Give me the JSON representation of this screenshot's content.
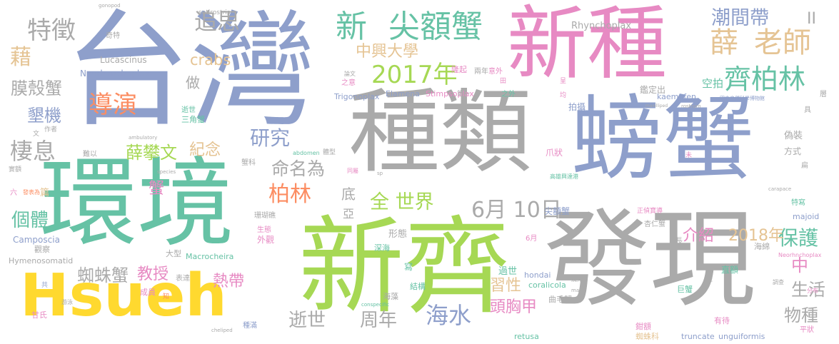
{
  "palette": {
    "gray": "#aaaaaa",
    "blue": "#8e9fcb",
    "teal": "#66c2a5",
    "green": "#a6d854",
    "pink": "#e78ac3",
    "orange": "#fc8d62",
    "yellow": "#ffd92f",
    "tan": "#e5c494"
  },
  "words": [
    {
      "text": "台灣",
      "color": "blue"
    },
    {
      "text": "種類",
      "color": "gray"
    },
    {
      "text": "螃蟹",
      "color": "blue"
    },
    {
      "text": "新種",
      "color": "pink"
    },
    {
      "text": "環境",
      "color": "teal"
    },
    {
      "text": "新齊",
      "color": "green"
    },
    {
      "text": "發現",
      "color": "gray"
    },
    {
      "text": "Hsueh",
      "color": "yellow"
    },
    {
      "text": "新",
      "color": "teal"
    },
    {
      "text": "尖額蟹",
      "color": "teal"
    },
    {
      "text": "2017年",
      "color": "green"
    },
    {
      "text": "薛",
      "color": "tan"
    },
    {
      "text": "老師",
      "color": "tan"
    },
    {
      "text": "齊柏林",
      "color": "teal"
    },
    {
      "text": "潮間帶",
      "color": "blue"
    },
    {
      "text": "特徵",
      "color": "gray"
    },
    {
      "text": "追思",
      "color": "gray"
    },
    {
      "text": "導演",
      "color": "orange"
    },
    {
      "text": "中興大學",
      "color": "tan"
    },
    {
      "text": "crabs",
      "color": "tan"
    },
    {
      "text": "膜殼蟹",
      "color": "gray"
    },
    {
      "text": "墾機",
      "color": "blue"
    },
    {
      "text": "棲息",
      "color": "gray"
    },
    {
      "text": "研究",
      "color": "blue"
    },
    {
      "text": "薛攀文",
      "color": "green"
    },
    {
      "text": "紀念",
      "color": "tan"
    },
    {
      "text": "命名為",
      "color": "gray"
    },
    {
      "text": "柏林",
      "color": "orange"
    },
    {
      "text": "全 世界",
      "color": "green"
    },
    {
      "text": "6月 10日",
      "color": "gray"
    },
    {
      "text": "個體",
      "color": "teal"
    },
    {
      "text": "保護",
      "color": "teal"
    },
    {
      "text": "中",
      "color": "pink"
    },
    {
      "text": "介紹",
      "color": "pink"
    },
    {
      "text": "2018年",
      "color": "tan"
    },
    {
      "text": "生活",
      "color": "gray"
    },
    {
      "text": "物種",
      "color": "gray"
    },
    {
      "text": "蜘蛛蟹",
      "color": "gray"
    },
    {
      "text": "教授",
      "color": "pink"
    },
    {
      "text": "逝世",
      "color": "gray"
    },
    {
      "text": "周年",
      "color": "gray"
    },
    {
      "text": "海水",
      "color": "blue"
    },
    {
      "text": "頭胸甲",
      "color": "pink"
    },
    {
      "text": "習性",
      "color": "tan"
    },
    {
      "text": "熱帶",
      "color": "pink"
    },
    {
      "text": "Neorhynchoplax",
      "color": "blue"
    },
    {
      "text": "Lucascinus",
      "color": "gray"
    },
    {
      "text": "Rhynchoplax",
      "color": "gray"
    },
    {
      "text": "Trigonoplax",
      "color": "blue"
    },
    {
      "text": "Elamena",
      "color": "blue"
    },
    {
      "text": "Stimpsoplax",
      "color": "pink"
    },
    {
      "text": "kaempfen",
      "color": "blue"
    },
    {
      "text": "Camposcia",
      "color": "blue"
    },
    {
      "text": "Hymenosomatid",
      "color": "gray"
    },
    {
      "text": "Macrocheira",
      "color": "teal"
    },
    {
      "text": "coralicola",
      "color": "teal"
    },
    {
      "text": "hondai",
      "color": "blue"
    },
    {
      "text": "majoid",
      "color": "blue"
    },
    {
      "text": "retusa",
      "color": "teal"
    },
    {
      "text": "truncate",
      "color": "blue"
    },
    {
      "text": "unguiformis",
      "color": "blue"
    },
    {
      "text": "setirostris",
      "color": "gray"
    },
    {
      "text": "gonopod",
      "color": "gray"
    },
    {
      "text": "ambulatory",
      "color": "gray"
    },
    {
      "text": "abdomen",
      "color": "teal"
    },
    {
      "text": "species",
      "color": "gray"
    },
    {
      "text": "carapace",
      "color": "gray"
    },
    {
      "text": "cheliped",
      "color": "gray"
    },
    {
      "text": "conspecific",
      "color": "teal"
    },
    {
      "text": "rostrum",
      "color": "gray"
    },
    {
      "text": "male",
      "color": "gray"
    },
    {
      "text": "Neorhnchoplax",
      "color": "pink"
    },
    {
      "text": "maxilliped",
      "color": "gray"
    },
    {
      "text": "sp",
      "color": "gray"
    },
    {
      "text": "II",
      "color": "gray"
    },
    {
      "text": "做",
      "color": "gray"
    },
    {
      "text": "藉",
      "color": "tan"
    },
    {
      "text": "底",
      "color": "gray"
    },
    {
      "text": "蟹",
      "color": "pink"
    },
    {
      "text": "亞",
      "color": "gray"
    },
    {
      "text": "篇",
      "color": "tan"
    },
    {
      "text": "空拍",
      "color": "teal"
    },
    {
      "text": "拍攝",
      "color": "blue"
    },
    {
      "text": "鑑定出",
      "color": "gray"
    },
    {
      "text": "爪狀",
      "color": "pink"
    },
    {
      "text": "尖額蟹",
      "color": "blue"
    },
    {
      "text": "正偵寶導",
      "color": "pink"
    },
    {
      "text": "杏仁蟹",
      "color": "gray"
    },
    {
      "text": "海綿",
      "color": "gray"
    },
    {
      "text": "偽裝",
      "color": "gray"
    },
    {
      "text": "方式",
      "color": "gray"
    },
    {
      "text": "特寫",
      "color": "teal"
    },
    {
      "text": "直額",
      "color": "teal"
    },
    {
      "text": "過世",
      "color": "teal"
    },
    {
      "text": "形態",
      "color": "gray"
    },
    {
      "text": "深海",
      "color": "teal"
    },
    {
      "text": "外觀",
      "color": "pink"
    },
    {
      "text": "生態",
      "color": "pink"
    },
    {
      "text": "珊瑚礁",
      "color": "gray"
    },
    {
      "text": "大型",
      "color": "gray"
    },
    {
      "text": "觀察",
      "color": "gray"
    },
    {
      "text": "結構",
      "color": "teal"
    },
    {
      "text": "寫",
      "color": "teal"
    },
    {
      "text": "曲毛蟹",
      "color": "gray"
    },
    {
      "text": "巨蟹",
      "color": "teal"
    },
    {
      "text": "有待",
      "color": "pink"
    },
    {
      "text": "平狀",
      "color": "pink"
    },
    {
      "text": "鉗額",
      "color": "pink"
    },
    {
      "text": "蜘蛛科",
      "color": "tan"
    },
    {
      "text": "海藻",
      "color": "gray"
    },
    {
      "text": "表達",
      "color": "gray"
    },
    {
      "text": "成員",
      "color": "pink"
    },
    {
      "text": "甘氏",
      "color": "pink"
    },
    {
      "text": "種滿",
      "color": "blue"
    },
    {
      "text": "三角蟹",
      "color": "teal"
    },
    {
      "text": "逝世",
      "color": "teal"
    },
    {
      "text": "作者",
      "color": "gray"
    },
    {
      "text": "奇特",
      "color": "gray"
    },
    {
      "text": "蟹科",
      "color": "gray"
    },
    {
      "text": "難以",
      "color": "gray"
    },
    {
      "text": "體型",
      "color": "gray"
    },
    {
      "text": "意外",
      "color": "pink"
    },
    {
      "text": "兩年",
      "color": "gray"
    },
    {
      "text": "隆起",
      "color": "pink"
    },
    {
      "text": "之外",
      "color": "teal"
    },
    {
      "text": "6月",
      "color": "pink"
    },
    {
      "text": "長",
      "color": "gray"
    },
    {
      "text": "具",
      "color": "gray"
    },
    {
      "text": "扁",
      "color": "gray"
    },
    {
      "text": "層",
      "color": "gray"
    },
    {
      "text": "均",
      "color": "pink"
    },
    {
      "text": "呈",
      "color": "pink"
    },
    {
      "text": "未",
      "color": "pink"
    },
    {
      "text": "田",
      "color": "pink"
    },
    {
      "text": "六",
      "color": "pink"
    },
    {
      "text": "共",
      "color": "blue"
    },
    {
      "text": "文",
      "color": "gray"
    },
    {
      "text": "知",
      "color": "orange"
    },
    {
      "text": "高雄興達港",
      "color": "teal"
    },
    {
      "text": "國立自然科學博物館",
      "color": "blue"
    },
    {
      "text": "之意",
      "color": "pink"
    },
    {
      "text": "第一",
      "color": "gray"
    },
    {
      "text": "論文",
      "color": "gray"
    },
    {
      "text": "同屬",
      "color": "pink"
    },
    {
      "text": "分布",
      "color": "pink"
    },
    {
      "text": "調查",
      "color": "gray"
    },
    {
      "text": "游泳",
      "color": "gray"
    },
    {
      "text": "觸角",
      "color": "gray"
    },
    {
      "text": "雌",
      "color": "gray"
    },
    {
      "text": "發表為",
      "color": "orange"
    },
    {
      "text": "實額",
      "color": "gray"
    }
  ]
}
